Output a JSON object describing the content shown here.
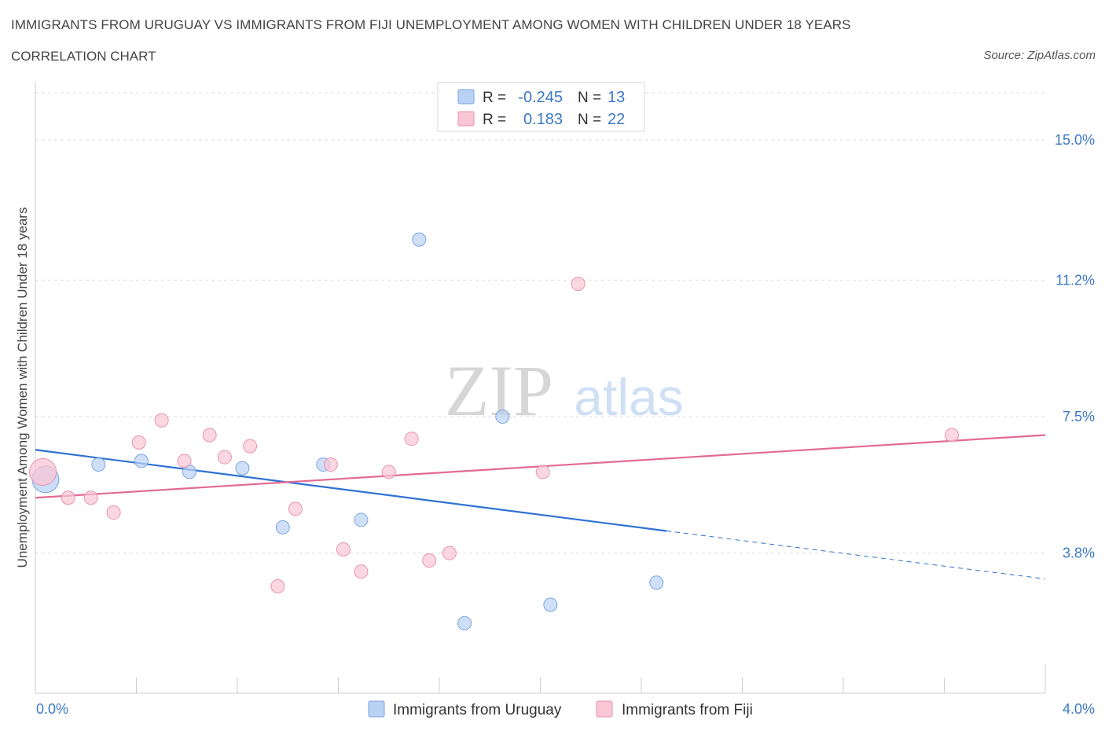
{
  "header": {
    "title": "IMMIGRANTS FROM URUGUAY VS IMMIGRANTS FROM FIJI UNEMPLOYMENT AMONG WOMEN WITH CHILDREN UNDER 18 YEARS",
    "subtitle": "CORRELATION CHART",
    "source": "Source: ZipAtlas.com"
  },
  "watermark": {
    "zip": "ZIP",
    "atlas": "atlas"
  },
  "colors": {
    "uruguay_fill": "#b9d2f4",
    "uruguay_stroke": "#7aa6e0",
    "uruguay_line": "#2f72d3",
    "fiji_fill": "#f9c6d5",
    "fiji_stroke": "#ea92ad",
    "fiji_line": "#e26a93",
    "axis_label": "#3b78c7",
    "stat_value": "#3b78c7"
  },
  "stats_legend": [
    {
      "r_label": "R =",
      "r_value": "-0.245",
      "n_label": "N =",
      "n_value": "13",
      "series": "uruguay"
    },
    {
      "r_label": "R =",
      "r_value": " 0.183",
      "n_label": "N =",
      "n_value": "22",
      "series": "fiji"
    }
  ],
  "chart_data": {
    "type": "scatter",
    "xlabel": "",
    "ylabel": "Unemployment Among Women with Children Under 18 years",
    "xlim": [
      0,
      4.0
    ],
    "ylim": [
      0,
      15.0
    ],
    "x_tick_labels": [
      "0.0%",
      "4.0%"
    ],
    "y_ticks": [
      3.8,
      7.5,
      11.2,
      15.0
    ],
    "y_tick_labels": [
      "3.8%",
      "7.5%",
      "11.2%",
      "15.0%"
    ],
    "grid": true,
    "legend_position": "bottom-center",
    "series": [
      {
        "name": "Immigrants from Uruguay",
        "color": "#b9d2f4",
        "points": [
          {
            "x": 0.04,
            "y": 5.8,
            "large": true
          },
          {
            "x": 0.25,
            "y": 6.2
          },
          {
            "x": 0.42,
            "y": 6.3
          },
          {
            "x": 0.61,
            "y": 6.0
          },
          {
            "x": 0.82,
            "y": 6.1
          },
          {
            "x": 0.98,
            "y": 4.5
          },
          {
            "x": 1.14,
            "y": 6.2
          },
          {
            "x": 1.29,
            "y": 4.7
          },
          {
            "x": 1.52,
            "y": 12.3
          },
          {
            "x": 1.7,
            "y": 1.9
          },
          {
            "x": 1.85,
            "y": 7.5
          },
          {
            "x": 2.04,
            "y": 2.4
          },
          {
            "x": 2.46,
            "y": 3.0
          }
        ],
        "trend": {
          "x0": 0.0,
          "y0": 6.6,
          "x1": 2.5,
          "y1": 4.4,
          "dash_x1": 4.0,
          "dash_y1": 3.1
        }
      },
      {
        "name": "Immigrants from Fiji",
        "color": "#f9c6d5",
        "points": [
          {
            "x": 0.03,
            "y": 6.0,
            "large": true
          },
          {
            "x": 0.13,
            "y": 5.3
          },
          {
            "x": 0.22,
            "y": 5.3
          },
          {
            "x": 0.31,
            "y": 4.9
          },
          {
            "x": 0.41,
            "y": 6.8
          },
          {
            "x": 0.5,
            "y": 7.4
          },
          {
            "x": 0.59,
            "y": 6.3
          },
          {
            "x": 0.69,
            "y": 7.0
          },
          {
            "x": 0.75,
            "y": 6.4
          },
          {
            "x": 0.85,
            "y": 6.7
          },
          {
            "x": 0.96,
            "y": 2.9
          },
          {
            "x": 1.03,
            "y": 5.0
          },
          {
            "x": 1.17,
            "y": 6.2
          },
          {
            "x": 1.22,
            "y": 3.9
          },
          {
            "x": 1.29,
            "y": 3.3
          },
          {
            "x": 1.4,
            "y": 6.0
          },
          {
            "x": 1.49,
            "y": 6.9
          },
          {
            "x": 1.56,
            "y": 3.6
          },
          {
            "x": 1.64,
            "y": 3.8
          },
          {
            "x": 2.01,
            "y": 6.0
          },
          {
            "x": 2.15,
            "y": 11.1
          },
          {
            "x": 3.63,
            "y": 7.0
          }
        ],
        "trend": {
          "x0": 0.0,
          "y0": 5.3,
          "x1": 4.0,
          "y1": 7.0
        }
      }
    ]
  }
}
